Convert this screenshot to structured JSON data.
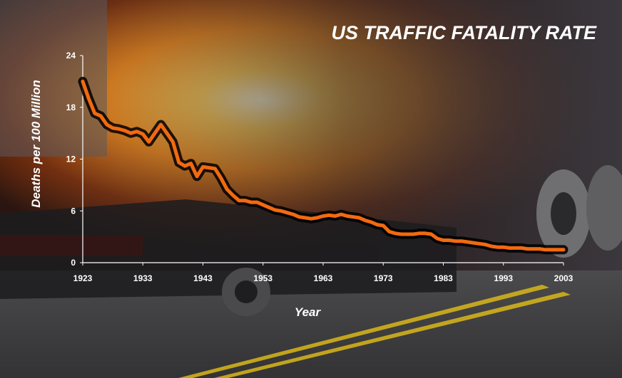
{
  "chart_data": {
    "type": "line",
    "title": "US TRAFFIC FATALITY RATE",
    "xlabel": "Year",
    "ylabel": "Deaths per 100 Million",
    "xlim": [
      1923,
      2003
    ],
    "ylim": [
      0,
      24
    ],
    "x_ticks": [
      "1923",
      "1933",
      "1943",
      "1953",
      "1963",
      "1973",
      "1983",
      "1993",
      "2003"
    ],
    "y_ticks": [
      "0",
      "6",
      "12",
      "18",
      "24"
    ],
    "grid": false,
    "legend": "none",
    "series": [
      {
        "color": "#f26a10",
        "x": [
          1923,
          1924,
          1925,
          1926,
          1927,
          1928,
          1929,
          1930,
          1931,
          1932,
          1933,
          1934,
          1935,
          1936,
          1937,
          1938,
          1939,
          1940,
          1941,
          1942,
          1943,
          1944,
          1945,
          1946,
          1947,
          1948,
          1949,
          1950,
          1951,
          1952,
          1953,
          1954,
          1955,
          1956,
          1957,
          1958,
          1959,
          1960,
          1961,
          1962,
          1963,
          1964,
          1965,
          1966,
          1967,
          1968,
          1969,
          1970,
          1971,
          1972,
          1973,
          1974,
          1975,
          1976,
          1977,
          1978,
          1979,
          1980,
          1981,
          1982,
          1983,
          1984,
          1985,
          1986,
          1987,
          1988,
          1989,
          1990,
          1991,
          1992,
          1993,
          1994,
          1995,
          1996,
          1997,
          1998,
          1999,
          2000,
          2001,
          2002,
          2003
        ],
        "y": [
          21.0,
          19.0,
          17.3,
          17.0,
          16.0,
          15.6,
          15.5,
          15.3,
          15.0,
          15.2,
          14.9,
          14.0,
          15.0,
          16.0,
          15.0,
          14.0,
          11.6,
          11.2,
          11.5,
          10.0,
          11.1,
          11.0,
          10.9,
          9.8,
          8.5,
          7.8,
          7.2,
          7.2,
          7.0,
          7.0,
          6.7,
          6.4,
          6.1,
          6.0,
          5.8,
          5.6,
          5.3,
          5.2,
          5.1,
          5.2,
          5.4,
          5.5,
          5.4,
          5.6,
          5.4,
          5.3,
          5.2,
          4.9,
          4.7,
          4.4,
          4.3,
          3.6,
          3.4,
          3.3,
          3.3,
          3.3,
          3.4,
          3.4,
          3.3,
          2.8,
          2.6,
          2.6,
          2.5,
          2.5,
          2.4,
          2.3,
          2.2,
          2.1,
          1.9,
          1.8,
          1.8,
          1.7,
          1.7,
          1.7,
          1.6,
          1.6,
          1.6,
          1.5,
          1.5,
          1.5,
          1.5
        ]
      }
    ]
  }
}
